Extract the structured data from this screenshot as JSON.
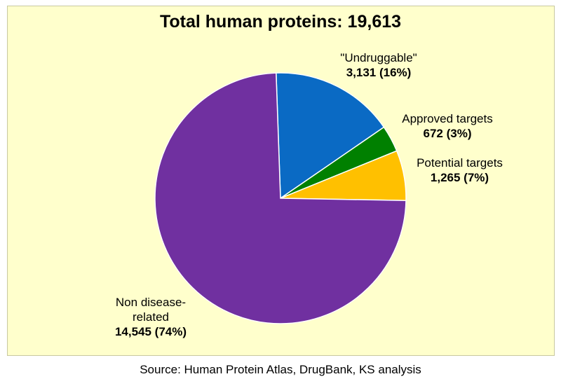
{
  "chart_data": {
    "type": "pie",
    "title": "Total human proteins: 19,613",
    "source": "Source: Human Protein Atlas, DrugBank, KS analysis",
    "slices": [
      {
        "name": "\"Undruggable\"",
        "value": 3131,
        "value_label": "3,131 (16%)",
        "color": "#0a6ac4"
      },
      {
        "name": "Approved targets",
        "value": 672,
        "value_label": "672 (3%)",
        "color": "#008000"
      },
      {
        "name": "Potential targets",
        "value": 1265,
        "value_label": "1,265 (7%)",
        "color": "#ffc000"
      },
      {
        "name_lines": [
          "Non disease-",
          "related"
        ],
        "value": 14545,
        "value_label": "14,545 (74%)",
        "color": "#7030a0"
      }
    ]
  }
}
